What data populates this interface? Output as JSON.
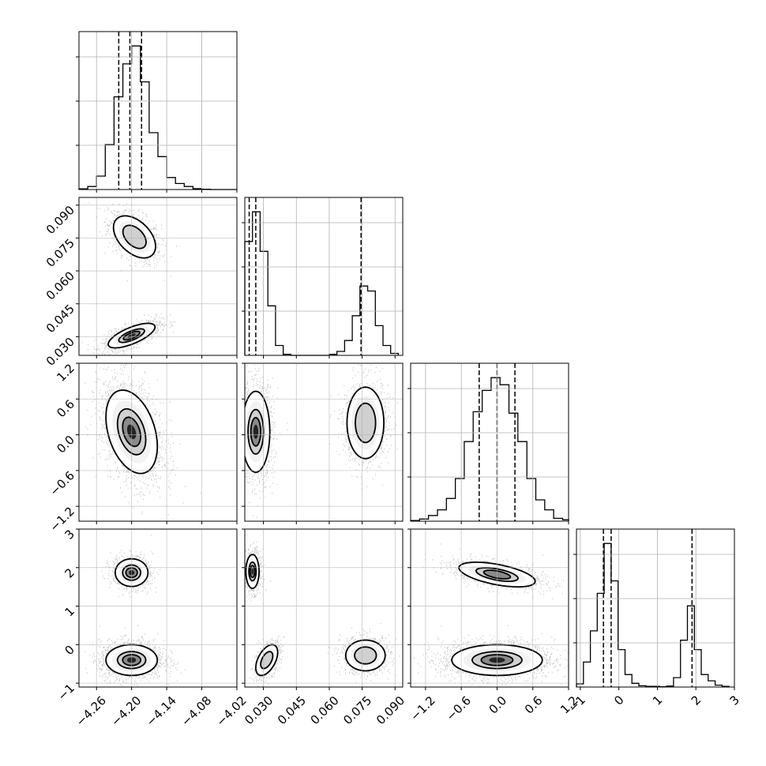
{
  "chart_data": {
    "type": "corner",
    "title": "",
    "parameters": [
      {
        "range": [
          -4.29,
          -4.02
        ],
        "ticks": [
          "−4.26",
          "−4.20",
          "−4.14",
          "−4.08",
          "−4.02"
        ],
        "tick_values": [
          -4.26,
          -4.2,
          -4.14,
          -4.08,
          -4.02
        ]
      },
      {
        "range": [
          0.0215,
          0.0935
        ],
        "ticks": [
          "0.030",
          "0.045",
          "0.060",
          "0.075",
          "0.090"
        ],
        "tick_values": [
          0.03,
          0.045,
          0.06,
          0.075,
          0.09
        ]
      },
      {
        "range": [
          -1.45,
          1.2
        ],
        "ticks": [
          "−1.2",
          "−0.6",
          "0.0",
          "0.6",
          "1.2"
        ],
        "tick_values": [
          -1.2,
          -0.6,
          0.0,
          0.6,
          1.2
        ]
      },
      {
        "range": [
          -1.1,
          3.0
        ],
        "ticks": [
          "−1",
          "0",
          "1",
          "2",
          "3"
        ],
        "tick_values": [
          -1,
          0,
          1,
          2,
          3
        ]
      }
    ],
    "grid": true,
    "histograms": [
      {
        "parameter": 0,
        "bins": [
          -4.29,
          -4.275,
          -4.26,
          -4.245,
          -4.23,
          -4.215,
          -4.2,
          -4.185,
          -4.17,
          -4.155,
          -4.14,
          -4.125,
          -4.11,
          -4.095,
          -4.08,
          -4.065,
          -4.05,
          -4.035,
          -4.02
        ],
        "counts": [
          2,
          10,
          45,
          150,
          310,
          420,
          480,
          360,
          190,
          110,
          40,
          20,
          10,
          3,
          1,
          0,
          0,
          0
        ],
        "quantile_lines": [
          -4.222,
          -4.203,
          -4.183
        ]
      },
      {
        "parameter": 1,
        "bins": [
          0.0215,
          0.025,
          0.0285,
          0.032,
          0.0355,
          0.039,
          0.0425,
          0.046,
          0.0495,
          0.053,
          0.0565,
          0.06,
          0.0635,
          0.067,
          0.0705,
          0.074,
          0.0775,
          0.081,
          0.0845,
          0.088,
          0.0915
        ],
        "counts": [
          230,
          290,
          210,
          100,
          20,
          2,
          0,
          0,
          0,
          0,
          0,
          2,
          8,
          30,
          80,
          140,
          130,
          60,
          20,
          4
        ],
        "quantile_lines": [
          0.0235,
          0.0265,
          0.0745
        ]
      },
      {
        "parameter": 2,
        "bins": [
          -1.45,
          -1.3,
          -1.15,
          -1.0,
          -0.85,
          -0.7,
          -0.55,
          -0.4,
          -0.25,
          -0.1,
          0.05,
          0.2,
          0.35,
          0.5,
          0.65,
          0.8,
          0.95,
          1.1,
          1.2
        ],
        "counts": [
          5,
          15,
          40,
          80,
          160,
          300,
          560,
          770,
          920,
          1010,
          960,
          760,
          560,
          300,
          150,
          80,
          20,
          10
        ],
        "quantile_lines": [
          -0.3,
          0.0,
          0.3
        ]
      },
      {
        "parameter": 3,
        "bins": [
          -1.1,
          -0.92,
          -0.74,
          -0.56,
          -0.38,
          -0.2,
          -0.02,
          0.16,
          0.34,
          0.52,
          0.7,
          0.88,
          1.06,
          1.24,
          1.42,
          1.6,
          1.78,
          1.96,
          2.14,
          2.32,
          2.5,
          2.68,
          2.86
        ],
        "counts": [
          10,
          80,
          180,
          300,
          460,
          340,
          120,
          40,
          12,
          4,
          2,
          2,
          1,
          3,
          30,
          150,
          260,
          120,
          40,
          20,
          6,
          2
        ],
        "quantile_lines": [
          -0.4,
          -0.2,
          1.9
        ]
      }
    ],
    "scatter_panels": [
      {
        "x_param": 0,
        "y_param": 1,
        "clusters": [
          {
            "center": [
              -4.195,
              0.0755
            ],
            "spread": [
              0.018,
              0.0048
            ],
            "corr": -0.45,
            "n": 900,
            "peak": 0.55
          },
          {
            "center": [
              -4.2,
              0.0305
            ],
            "spread": [
              0.02,
              0.0028
            ],
            "corr": 0.7,
            "n": 1100,
            "peak": 0.95
          }
        ]
      },
      {
        "x_param": 0,
        "y_param": 2,
        "clusters": [
          {
            "center": [
              -4.2,
              0.05
            ],
            "spread": [
              0.022,
              0.35
            ],
            "corr": -0.35,
            "n": 1800,
            "peak": 1.0
          }
        ]
      },
      {
        "x_param": 1,
        "y_param": 2,
        "clusters": [
          {
            "center": [
              0.0265,
              0.05
            ],
            "spread": [
              0.0032,
              0.34
            ],
            "corr": 0.0,
            "n": 1200,
            "peak": 1.0
          },
          {
            "center": [
              0.0765,
              0.2
            ],
            "spread": [
              0.0042,
              0.3
            ],
            "corr": 0.0,
            "n": 900,
            "peak": 0.45
          }
        ]
      },
      {
        "x_param": 0,
        "y_param": 3,
        "clusters": [
          {
            "center": [
              -4.2,
              1.87
            ],
            "spread": [
              0.014,
              0.18
            ],
            "corr": 0.0,
            "n": 700,
            "peak": 0.95
          },
          {
            "center": [
              -4.2,
              -0.4
            ],
            "spread": [
              0.022,
              0.2
            ],
            "corr": 0.0,
            "n": 1600,
            "peak": 0.95
          }
        ]
      },
      {
        "x_param": 1,
        "y_param": 3,
        "clusters": [
          {
            "center": [
              0.025,
              1.9
            ],
            "spread": [
              0.0015,
              0.22
            ],
            "corr": 0.0,
            "n": 700,
            "peak": 0.95
          },
          {
            "center": [
              0.0315,
              -0.4
            ],
            "spread": [
              0.0025,
              0.2
            ],
            "corr": 0.5,
            "n": 600,
            "peak": 0.5
          },
          {
            "center": [
              0.0765,
              -0.28
            ],
            "spread": [
              0.0045,
              0.2
            ],
            "corr": 0.0,
            "n": 800,
            "peak": 0.35
          }
        ]
      },
      {
        "x_param": 2,
        "y_param": 3,
        "clusters": [
          {
            "center": [
              0.0,
              1.82
            ],
            "spread": [
              0.32,
              0.16
            ],
            "corr": -0.55,
            "n": 900,
            "peak": 0.75
          },
          {
            "center": [
              0.0,
              -0.4
            ],
            "spread": [
              0.38,
              0.2
            ],
            "corr": 0.0,
            "n": 1800,
            "peak": 0.95
          }
        ]
      }
    ]
  },
  "colors": {
    "line": "#000000",
    "grid": "#b0b0b0",
    "points": "#000000"
  }
}
